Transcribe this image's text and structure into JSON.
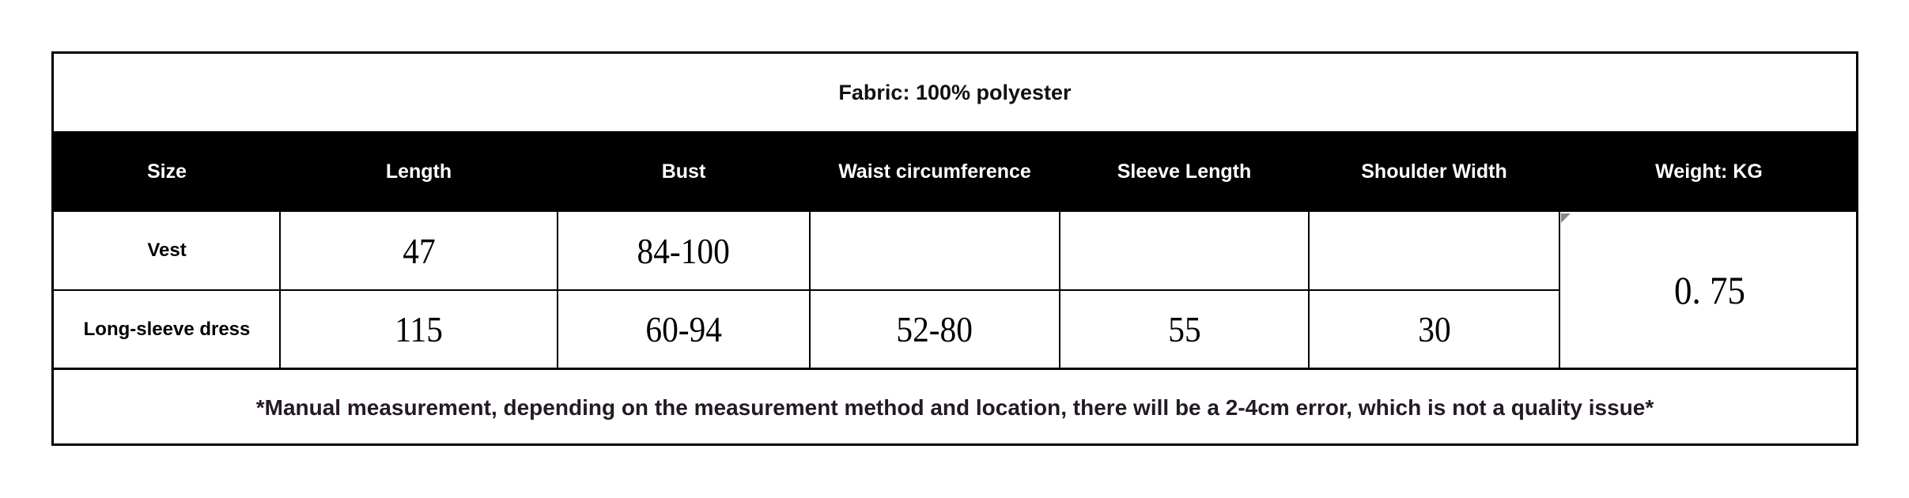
{
  "title": "Fabric: 100% polyester",
  "headers": [
    "Size",
    "Length",
    "Bust",
    "Waist circumference",
    "Sleeve Length",
    "Shoulder Width",
    "Weight: KG"
  ],
  "rows": [
    {
      "size": "Vest",
      "length": "47",
      "bust": "84-100",
      "waist": "",
      "sleeve": "",
      "shoulder": ""
    },
    {
      "size": "Long-sleeve dress",
      "length": "115",
      "bust": "60-94",
      "waist": "52-80",
      "sleeve": "55",
      "shoulder": "30"
    }
  ],
  "weight": "0. 75",
  "footnote": "*Manual measurement, depending on the measurement method and location, there will be a 2-4cm error, which is not a quality issue*",
  "colors": {
    "header_bg": "#000000",
    "header_text": "#ffffff",
    "footnote_text": "#231a25"
  }
}
